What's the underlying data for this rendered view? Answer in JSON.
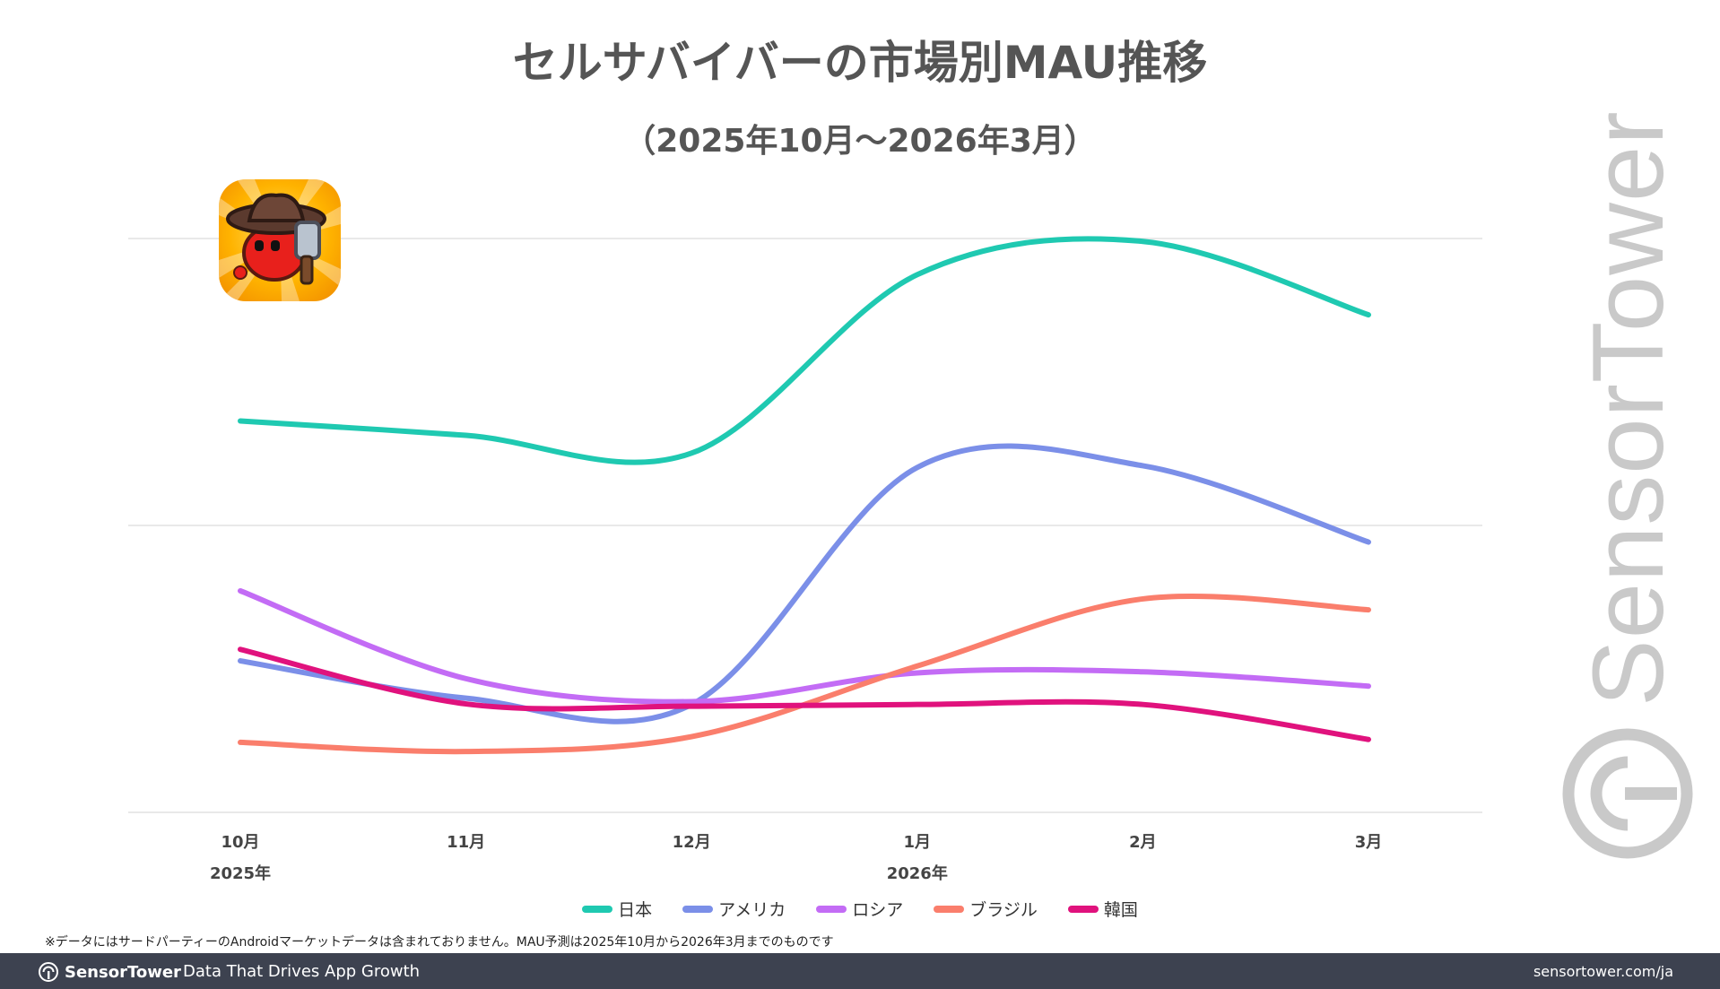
{
  "title": "セルサバイバーの市場別MAU推移",
  "subtitle": "（2025年10月〜2026年3月）",
  "chart_data": {
    "type": "line",
    "title": "セルサバイバーの市場別MAU推移",
    "subtitle": "（2025年10月〜2026年3月）",
    "categories": [
      "10月",
      "11月",
      "12月",
      "1月",
      "2月",
      "3月"
    ],
    "year_labels": [
      {
        "category_index": 0,
        "label": "2025年"
      },
      {
        "category_index": 3,
        "label": "2026年"
      }
    ],
    "ylim": [
      0,
      100
    ],
    "gridlines": [
      0,
      50,
      100
    ],
    "y_axis_labels_shown": false,
    "series": [
      {
        "name": "日本",
        "color": "#1fc9b1",
        "values": [
          68.2,
          65.7,
          62.6,
          93.7,
          99.5,
          86.7
        ]
      },
      {
        "name": "アメリカ",
        "color": "#7b8fe8",
        "values": [
          26.4,
          19.9,
          18.8,
          60.1,
          60.4,
          47.1
        ]
      },
      {
        "name": "ロシア",
        "color": "#c36cf5",
        "values": [
          38.6,
          23.3,
          19.3,
          24.3,
          24.5,
          22.0
        ]
      },
      {
        "name": "ブラジル",
        "color": "#fa7e6c",
        "values": [
          12.2,
          10.6,
          13.2,
          25.5,
          37.2,
          35.3
        ]
      },
      {
        "name": "韓国",
        "color": "#e0127d",
        "values": [
          28.4,
          18.9,
          18.5,
          18.8,
          18.8,
          12.7
        ]
      }
    ]
  },
  "footnote": "※データにはサードパーティーのAndroidマーケットデータは含まれておりません。MAU予測は2025年10月から2026年3月までのものです",
  "footer": {
    "logo_text": "SensorTower",
    "tagline": "Data That Drives App Growth",
    "url": "sensortower.com/ja"
  },
  "watermark": "SensorTower",
  "icons": {
    "app_icon": "cell-survivor-app-icon",
    "logo": "sensortower-logo-icon"
  }
}
